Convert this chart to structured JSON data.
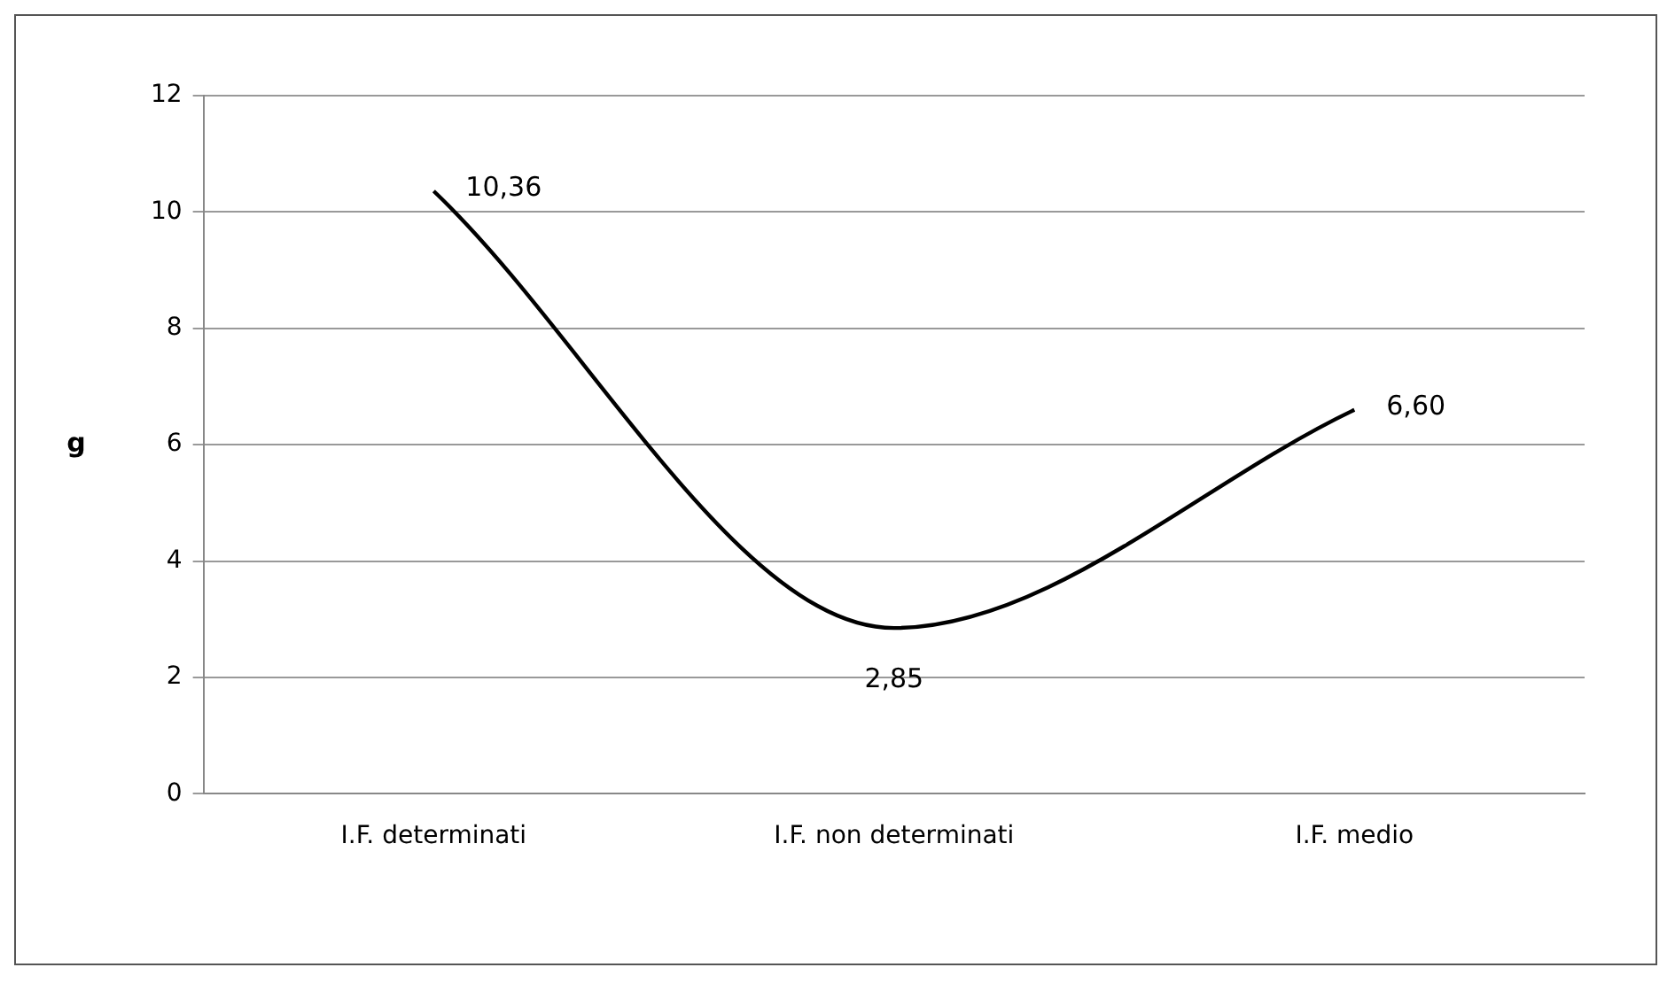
{
  "chart_data": {
    "type": "line",
    "ylabel": "g",
    "categories": [
      "I.F. determinati",
      "I.F. non determinati",
      "I.F. medio"
    ],
    "series": [
      {
        "color": "#000000",
        "values": [
          10.36,
          2.85,
          6.6
        ],
        "value_labels": [
          "10,36",
          "2,85",
          "6,60"
        ]
      }
    ],
    "ylim": [
      0,
      12
    ],
    "yticks": [
      0,
      2,
      4,
      6,
      8,
      10,
      12
    ],
    "grid": "y",
    "legend": false,
    "marker": "none",
    "line_style": "solid"
  }
}
